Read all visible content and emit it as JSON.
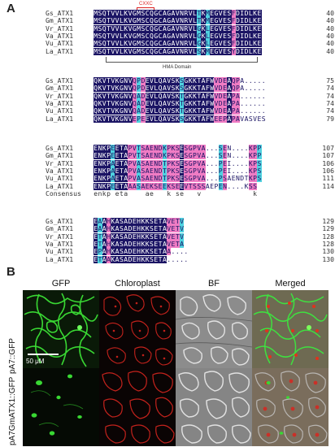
{
  "panel_a": {
    "label": "A",
    "cxxc_annotation": "CXXC",
    "hma_label": "HMA Domain",
    "blocks": [
      {
        "rows": [
          {
            "name": "Gs_ATX1",
            "seq": "MSQTVVLKVGMSCQGCAGAVNRVLTKMEGVESFDIDLKE",
            "num": "40"
          },
          {
            "name": "Gm_ATX1",
            "seq": "MSQTVVLKVGMSCQGCAGAVNRVLTKMEGVESFDIDLKE",
            "num": "40"
          },
          {
            "name": "Vr_ATX1",
            "seq": "MSQTVVLKVGMSCQGCAGAVNRVLGKLEGVESFDIDLKE",
            "num": "40"
          },
          {
            "name": "Va_ATX1",
            "seq": "MSQTVVLKVGMSCQGCAGAVNRVLGKLEGVESFDIDLKE",
            "num": "40"
          },
          {
            "name": "Vu_ATX1",
            "seq": "MSQTVVLKVGMSCQGCAGAVNRVLGKLEGVESFDIDLKE",
            "num": "40"
          },
          {
            "name": "La_ATX1",
            "seq": "MSQTVVLKVGMSCQGCAGAVNRVLSKMEGVESYDIDLKE",
            "num": "40"
          }
        ]
      },
      {
        "rows": [
          {
            "name": "Gs_ATX1",
            "seq": "QKVTVKGNVQPDEVLQAVSKSGKKTAFWVDEAQPA.....",
            "num": "75"
          },
          {
            "name": "Gm_ATX1",
            "seq": "QKVTVKGNVQPDEVLQAVSKSGKKTAFWVDEAQPA.....",
            "num": "74"
          },
          {
            "name": "Vr_ATX1",
            "seq": "QKVTVKGNVQADEVLQAVSKTGKKTAFWVDEAPA......",
            "num": "74"
          },
          {
            "name": "Va_ATX1",
            "seq": "QKVTVKGNVQADEVLQAVSKTGKKTAFWVDEAPA......",
            "num": "74"
          },
          {
            "name": "Vu_ATX1",
            "seq": "QKVTVKGNVQADEVLQAVSKTGKKTAFWVDEAPA......",
            "num": "74"
          },
          {
            "name": "La_ATX1",
            "seq": "QKVTVKGNVEPEEVLQAVSKSGKKTAFWEEPAPAVASVES",
            "num": "79"
          }
        ]
      },
      {
        "rows": [
          {
            "name": "Gs_ATX1",
            "seq": "ENKPEETAPVTSAENDKPKSESGPVA...SEN....KPP",
            "num": "107"
          },
          {
            "name": "Gm_ATX1",
            "seq": "ENKPEETAPVTSAENDKPKSESGPVA...SEN....KPP",
            "num": "107"
          },
          {
            "name": "Vr_ATX1",
            "seq": "ENKPAETAPVASAENDTPKSESGPVA...PEI....KPS",
            "num": "106"
          },
          {
            "name": "Va_ATX1",
            "seq": "ENKPAETAPVASAENDTPKSESGPVA...PEI....KPS",
            "num": "106"
          },
          {
            "name": "Vu_ATX1",
            "seq": "ENKPAETAPVASAENDTPKSESGPVA...PSAENDTKPS",
            "num": "111"
          },
          {
            "name": "La_ATX1",
            "seq": "ENKPEETAAASAEKSEEKSEEVTSSSAEPEN....KSS",
            "num": "114"
          }
        ],
        "consensus_name": "Consensus",
        "consensus_seq": "enkp eta    ae   k se   v            k"
      },
      {
        "rows": [
          {
            "name": "Gs_ATX1",
            "seq": "EAAHKASADEHKKSETAVETV",
            "num": "129"
          },
          {
            "name": "Gm_ATX1",
            "seq": "EAAHKASADEHKKSETAVETV",
            "num": "129"
          },
          {
            "name": "Vr_ATX1",
            "seq": "ETAHKASADEHKKSETAVETV",
            "num": "128"
          },
          {
            "name": "Va_ATX1",
            "seq": "ETAHKASADEHKKSETAVETA",
            "num": "128"
          },
          {
            "name": "Vu_ATX1",
            "seq": "EPAHKASADEHKKSETAA....",
            "num": "130"
          },
          {
            "name": "La_ATX1",
            "seq": "ETAAKASADEHKKSETA.....",
            "num": "130"
          }
        ]
      }
    ]
  },
  "panel_b": {
    "label": "B",
    "columns": [
      "GFP",
      "Chloroplast",
      "BF",
      "Merged"
    ],
    "rows": [
      "pA7::GFP",
      "pA7GmATX1::GFP"
    ],
    "scale_bar": "50 μM"
  },
  "colors": {
    "identical": "#1b1464",
    "high_similarity": "#f07cc4",
    "low_similarity": "#4fd2e0",
    "gfp_green": "#39d833",
    "chloroplast_red": "#d8261f"
  }
}
